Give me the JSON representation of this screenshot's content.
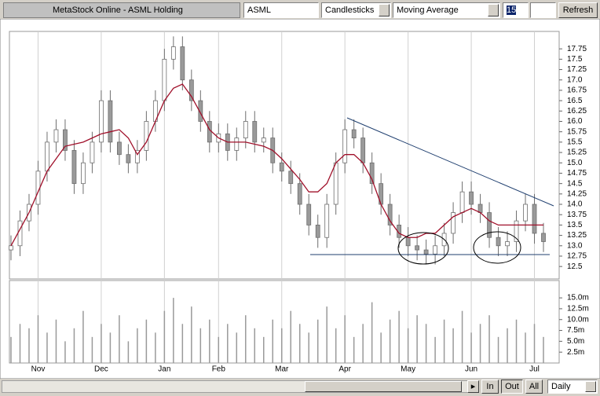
{
  "toolbar": {
    "title": "MetaStock Online - ASML Holding",
    "symbol": "ASML",
    "chart_type": "Candlesticks",
    "indicator": "Moving Average",
    "period": "15",
    "button": "Refresh"
  },
  "chart_data": [
    {
      "type": "candlestick",
      "up_color": "#ffffff",
      "down_color": "#9a9a9a",
      "edge_color": "#6e6e6e",
      "open": [
        12.9,
        13.0,
        13.6,
        14.0,
        14.8,
        15.5,
        15.8,
        15.3,
        14.5,
        15.0,
        15.5,
        16.5,
        15.5,
        15.2,
        15.0,
        15.3,
        16.0,
        16.5,
        17.5,
        17.8,
        17.0,
        16.5,
        16.0,
        15.5,
        15.7,
        15.3,
        15.6,
        16.0,
        15.5,
        15.6,
        15.0,
        14.8,
        14.5,
        14.0,
        13.5,
        13.2,
        14.0,
        15.0,
        15.8,
        15.6,
        15.0,
        14.5,
        14.0,
        13.5,
        13.2,
        13.0,
        12.9,
        12.8,
        13.0,
        13.3,
        13.8,
        14.3,
        14.0,
        13.8,
        13.2,
        13.0,
        13.1,
        13.6,
        14.0,
        13.3
      ],
      "high": [
        13.25,
        13.85,
        14.25,
        15.05,
        15.75,
        16.05,
        16.05,
        15.55,
        15.25,
        15.75,
        16.75,
        16.75,
        15.75,
        15.45,
        15.55,
        16.25,
        16.75,
        17.75,
        18.05,
        18.05,
        17.25,
        16.75,
        16.25,
        15.95,
        15.95,
        15.85,
        16.25,
        16.25,
        15.85,
        15.85,
        15.25,
        15.05,
        14.75,
        14.25,
        13.75,
        14.25,
        15.25,
        16.05,
        16.05,
        15.85,
        15.25,
        14.75,
        14.25,
        13.75,
        13.45,
        13.25,
        13.15,
        13.25,
        13.55,
        14.05,
        14.55,
        14.55,
        14.25,
        14.05,
        13.45,
        13.35,
        13.85,
        14.25,
        14.25,
        13.55
      ],
      "low": [
        12.65,
        12.75,
        13.35,
        13.75,
        14.55,
        15.25,
        15.05,
        14.25,
        14.25,
        14.75,
        15.25,
        15.25,
        14.95,
        14.75,
        14.75,
        15.05,
        15.75,
        16.25,
        17.25,
        16.75,
        16.25,
        15.75,
        15.25,
        15.25,
        15.05,
        15.05,
        15.35,
        15.25,
        15.25,
        14.75,
        14.55,
        14.25,
        13.75,
        13.25,
        12.95,
        12.95,
        13.75,
        14.75,
        15.35,
        14.75,
        14.25,
        13.75,
        13.25,
        12.95,
        12.75,
        12.65,
        12.55,
        12.55,
        12.75,
        13.05,
        13.55,
        13.75,
        13.55,
        12.95,
        12.75,
        12.75,
        12.85,
        13.35,
        13.05,
        12.85
      ],
      "close": [
        13.0,
        13.6,
        14.0,
        14.8,
        15.5,
        15.8,
        15.3,
        14.5,
        15.0,
        15.5,
        16.5,
        15.5,
        15.2,
        15.0,
        15.3,
        16.0,
        16.5,
        17.5,
        17.8,
        17.0,
        16.5,
        16.0,
        15.5,
        15.7,
        15.3,
        15.6,
        16.0,
        15.5,
        15.6,
        15.0,
        14.8,
        14.5,
        14.0,
        13.5,
        13.2,
        14.0,
        15.0,
        15.8,
        15.6,
        15.0,
        14.5,
        14.0,
        13.5,
        13.2,
        13.0,
        12.9,
        12.8,
        13.0,
        13.3,
        13.8,
        14.3,
        14.0,
        13.8,
        13.2,
        13.0,
        13.1,
        13.6,
        14.0,
        13.3,
        13.1
      ],
      "moving_average": {
        "color": "#a0102a",
        "values": [
          13.0,
          13.4,
          13.8,
          14.3,
          14.8,
          15.1,
          15.4,
          15.45,
          15.5,
          15.6,
          15.7,
          15.75,
          15.8,
          15.6,
          15.2,
          15.5,
          16.0,
          16.5,
          16.8,
          16.9,
          16.6,
          16.2,
          15.8,
          15.6,
          15.5,
          15.5,
          15.5,
          15.45,
          15.4,
          15.3,
          15.1,
          14.85,
          14.6,
          14.3,
          14.3,
          14.5,
          15.0,
          15.2,
          15.2,
          15.0,
          14.6,
          14.0,
          13.6,
          13.3,
          13.2,
          13.2,
          13.3,
          13.3,
          13.5,
          13.7,
          13.8,
          13.9,
          13.8,
          13.6,
          13.5,
          13.5,
          13.5,
          13.5,
          13.5,
          13.5
        ]
      },
      "ylim": [
        12.2,
        18.17
      ],
      "yticks": [
        12.5,
        12.75,
        {
          "value": 13,
          "label": "13.0"
        },
        13.25,
        13.5,
        13.75,
        {
          "value": 14,
          "label": "14.0"
        },
        14.25,
        14.5,
        14.75,
        {
          "value": 15,
          "label": "15.0"
        },
        15.25,
        15.5,
        15.75,
        {
          "value": 16,
          "label": "16.0"
        },
        16.25,
        16.5,
        16.75,
        {
          "value": 17,
          "label": "17.0"
        },
        17.25,
        17.5,
        17.75
      ],
      "grid": "x"
    },
    {
      "type": "bar",
      "color": "#9a9a9a",
      "categories": [
        null,
        null,
        null,
        "Nov",
        null,
        null,
        null,
        null,
        null,
        null,
        "Dec",
        null,
        null,
        null,
        null,
        null,
        null,
        "Jan",
        null,
        null,
        null,
        null,
        null,
        "Feb",
        null,
        null,
        null,
        null,
        null,
        null,
        "Mar",
        null,
        null,
        null,
        null,
        null,
        null,
        "Apr",
        null,
        null,
        null,
        null,
        null,
        null,
        "May",
        null,
        null,
        null,
        null,
        null,
        null,
        "Jun",
        null,
        null,
        null,
        null,
        null,
        null,
        "Jul",
        null
      ],
      "values": [
        6,
        9,
        8,
        11,
        7,
        10,
        5,
        8,
        12,
        6,
        9,
        7,
        11,
        5,
        8,
        10,
        7,
        12,
        15,
        9,
        13,
        8,
        10,
        6,
        9,
        7,
        11,
        8,
        6,
        10,
        8,
        12,
        9,
        7,
        10,
        13,
        8,
        11,
        6,
        9,
        14,
        7,
        10,
        12,
        8,
        11,
        9,
        6,
        10,
        8,
        12,
        7,
        9,
        11,
        6,
        8,
        10,
        7,
        9,
        6
      ],
      "ylim": [
        0,
        19
      ],
      "yticks": [
        {
          "value": 2.5,
          "label": "2.5m"
        },
        {
          "value": 5,
          "label": "5.0m"
        },
        {
          "value": 7.5,
          "label": "7.5m"
        },
        {
          "value": 10,
          "label": "10.0m"
        },
        {
          "value": 12.5,
          "label": "12.5m"
        },
        {
          "value": 15,
          "label": "15.0m"
        }
      ],
      "grid": "x"
    }
  ],
  "footer": {
    "zoom_in": "In",
    "zoom_out": "Out",
    "zoom_all": "All",
    "period": "Daily"
  }
}
